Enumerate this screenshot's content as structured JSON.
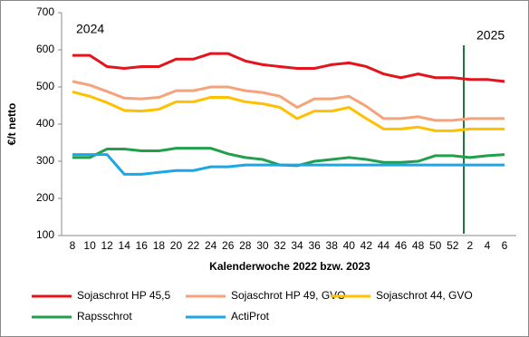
{
  "chart_data": {
    "type": "line",
    "x_label": "Kalenderwoche 2022 bzw.  2023",
    "y_label": "€/t netto",
    "annotations": [
      "2024",
      "2025"
    ],
    "categories": [
      "8",
      null,
      "10",
      null,
      "12",
      null,
      "14",
      null,
      "16",
      null,
      "18",
      null,
      "20",
      null,
      "22",
      null,
      "24",
      null,
      "26",
      null,
      "28",
      null,
      "30",
      null,
      "32",
      null,
      "34",
      null,
      "36",
      null,
      "38",
      null,
      "40",
      null,
      "42",
      null,
      "44",
      null,
      "46",
      null,
      "48",
      null,
      "50",
      null,
      "52",
      null,
      "2",
      null,
      "4",
      null,
      "6"
    ],
    "series": [
      {
        "name": "Sojaschrot HP 45,5",
        "color": "#e3141c",
        "values": [
          585,
          585,
          585,
          570,
          555,
          552.5,
          550,
          552.5,
          555,
          555,
          555,
          565,
          575,
          575,
          575,
          582.5,
          590,
          590,
          590,
          580,
          570,
          565,
          560,
          557.5,
          555,
          552.5,
          550,
          550,
          550,
          555,
          560,
          562.5,
          565,
          560,
          555,
          545,
          535,
          530,
          525,
          530,
          535,
          530,
          525,
          525,
          525,
          522.5,
          520,
          520,
          520,
          517.5,
          515
        ]
      },
      {
        "name": "Sojaschrot HP 49, GVO",
        "color": "#f5a37b",
        "values": [
          515,
          510,
          505,
          496.5,
          488,
          479,
          470,
          469,
          468,
          470,
          472,
          481,
          490,
          490,
          490,
          495,
          500,
          500,
          500,
          495,
          490,
          487.5,
          485,
          480,
          475,
          460,
          445,
          456.5,
          468,
          468,
          468,
          471.5,
          475,
          461.5,
          448,
          431.5,
          415,
          415,
          415,
          417.5,
          420,
          415,
          410,
          410,
          410,
          412.5,
          415,
          415,
          415,
          415,
          415
        ]
      },
      {
        "name": "Sojaschrot 44, GVO",
        "color": "#ffc000",
        "values": [
          487,
          481,
          475,
          466.5,
          458,
          447.5,
          437,
          436,
          435,
          437.5,
          440,
          450,
          460,
          460,
          460,
          466,
          472,
          472,
          472,
          466,
          460,
          457.5,
          455,
          450,
          445,
          430,
          415,
          425,
          435,
          435,
          435,
          440,
          445,
          430,
          415,
          401,
          387,
          387,
          387,
          389.5,
          392,
          387,
          382,
          382,
          382,
          384.5,
          387,
          387,
          387,
          387,
          387
        ]
      },
      {
        "name": "Rapsschrot",
        "color": "#21a04c",
        "values": [
          310,
          310,
          310,
          321.5,
          333,
          333,
          333,
          330.5,
          328,
          328,
          328,
          331.5,
          335,
          335,
          335,
          335,
          335,
          327.5,
          320,
          315,
          310,
          307.5,
          305,
          297.5,
          290,
          289,
          288,
          294,
          300,
          302.5,
          305,
          307.5,
          310,
          307.5,
          305,
          301,
          297,
          297,
          297,
          298.5,
          300,
          307.5,
          315,
          315,
          315,
          312.5,
          310,
          312.5,
          315,
          316.5,
          318
        ]
      },
      {
        "name": "ActiProt",
        "color": "#1ba6e4",
        "values": [
          318,
          318,
          318,
          318,
          318,
          291.5,
          265,
          265,
          265,
          267.5,
          270,
          272.5,
          275,
          275,
          275,
          280,
          285,
          285,
          285,
          287.5,
          290,
          290,
          290,
          290,
          290,
          290,
          290,
          290,
          290,
          290,
          290,
          290,
          290,
          290,
          290,
          290,
          290,
          290,
          290,
          290,
          290,
          290,
          290,
          290,
          290,
          290,
          290,
          290,
          290,
          290,
          290
        ]
      }
    ],
    "ylim": [
      100,
      700
    ],
    "yticks": [
      100,
      200,
      300,
      400,
      500,
      600,
      700
    ],
    "grid": false
  }
}
